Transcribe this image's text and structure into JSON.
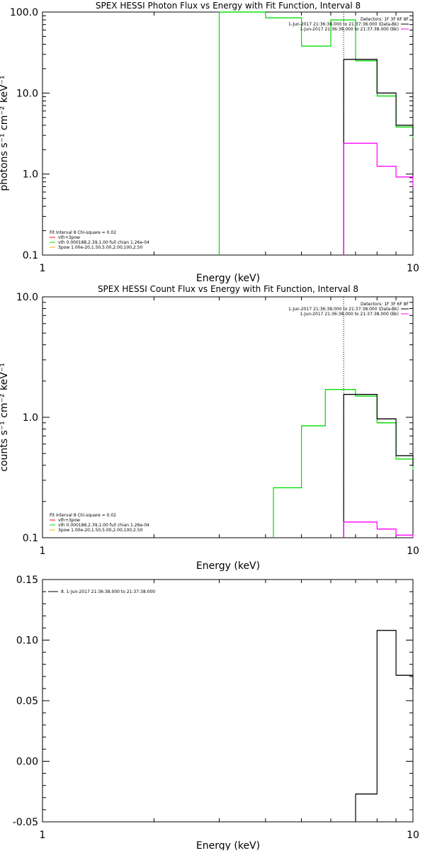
{
  "colors": {
    "background": "#ffffff",
    "data": "#000000",
    "total_fit": "#ff00ff",
    "vth": "#00dd00",
    "apow": "#ff0000",
    "thermal_line": "#00dd00",
    "bk_line": "#ff00ff",
    "pow_line": "#ffaa00"
  },
  "chart_data": [
    {
      "type": "line",
      "title": "SPEX HESSI Photon Flux vs Energy with Fit Function, Interval 8",
      "xlabel": "Energy (keV)",
      "ylabel": "photons s⁻¹ cm⁻² keV⁻¹",
      "xscale": "log",
      "yscale": "log",
      "xlim": [
        1,
        10
      ],
      "ylim": [
        0.1,
        100
      ],
      "xticks": [
        {
          "v": 1,
          "label": "1"
        },
        {
          "v": 10,
          "label": "10"
        }
      ],
      "yticks": [
        {
          "v": 0.1,
          "label": "0.1"
        },
        {
          "v": 1,
          "label": "1.0"
        },
        {
          "v": 10,
          "label": "10.0"
        },
        {
          "v": 100,
          "label": "100.0"
        }
      ],
      "vline_x": 6.5,
      "legend_top": {
        "header": "Detectors: 1F 3F 6F 8F",
        "lines": [
          "1-Jun-2017 21:36:38.000 to 21:37:38.000 (Data-Bk)",
          "1-Jun-2017 21:36:38.000 to 21:37:38.000 (Bk)"
        ]
      },
      "legend_bottom": {
        "header": "Fit Interval 8   Chi-square = 0.02",
        "lines": [
          "vth+3pow",
          "vth 0.000188,2.39,1.00  full chian 1.26e-04",
          "3pow 1.00e-20,1.50,5.00,2.00,100,2.50"
        ]
      },
      "series": [
        {
          "name": "vth 0.000188,2.39,1.00  full chian 1.26e-04",
          "key": "vth",
          "edges": [
            3,
            4,
            5,
            6,
            7,
            8,
            9,
            10
          ],
          "values": [
            100,
            85,
            38,
            80,
            25,
            9.2,
            3.8
          ]
        },
        {
          "name": "1-Jun-2017 21:36:38.000 to 21:37:38.000 (Data-Bk)",
          "key": "data",
          "edges": [
            6.5,
            7,
            8,
            9,
            10
          ],
          "values": [
            26,
            26,
            10,
            4
          ]
        },
        {
          "name": "1-Jun-2017 21:36:38.000 to 21:37:38.000 (Bk)",
          "key": "bk",
          "edges": [
            6.5,
            7,
            8,
            9,
            10
          ],
          "values": [
            2.4,
            2.4,
            1.25,
            0.92
          ]
        }
      ]
    },
    {
      "type": "line",
      "title": "SPEX HESSI Count Flux vs Energy with Fit Function, Interval 8",
      "xlabel": "Energy (keV)",
      "ylabel": "counts s⁻¹ cm⁻² keV⁻¹",
      "xscale": "log",
      "yscale": "log",
      "xlim": [
        1,
        10
      ],
      "ylim": [
        0.1,
        10
      ],
      "xticks": [
        {
          "v": 1,
          "label": "1"
        },
        {
          "v": 10,
          "label": "10"
        }
      ],
      "yticks": [
        {
          "v": 0.1,
          "label": "0.1"
        },
        {
          "v": 1,
          "label": "1.0"
        },
        {
          "v": 10,
          "label": "10.0"
        }
      ],
      "vline_x": 6.5,
      "legend_top": {
        "header": "Detectors: 1F 3F 6F 8F",
        "lines": [
          "1-Jun-2017 21:36:38.000 to 21:37:38.000 (Data-Bk)",
          "1-Jun-2017 21:36:38.000 to 21:37:38.000 (Bk)"
        ]
      },
      "legend_bottom": {
        "header": "Fit Interval 8   Chi-square = 0.02",
        "lines": [
          "vth+3pow",
          "vth 0.000188,2.39,1.00  full chian 1.26e-04",
          "3pow 1.00e-20,1.50,5.00,2.00,100,2.50"
        ]
      },
      "series": [
        {
          "name": "vth 0.000188,2.39,1.00  full chian 1.26e-04",
          "key": "vth",
          "edges": [
            4.2,
            5,
            5.8,
            6.5,
            7,
            8,
            9,
            10
          ],
          "values": [
            0.26,
            0.85,
            1.7,
            1.7,
            1.5,
            0.9,
            0.45
          ]
        },
        {
          "name": "1-Jun-2017 21:36:38.000 to 21:37:38.000 (Data-Bk)",
          "key": "data",
          "edges": [
            6.5,
            7,
            8,
            9,
            10
          ],
          "values": [
            1.55,
            1.55,
            0.97,
            0.48
          ]
        },
        {
          "name": "1-Jun-2017 21:36:38.000 to 21:37:38.000 (Bk)",
          "key": "bk",
          "edges": [
            6.5,
            7,
            8,
            9,
            10
          ],
          "values": [
            0.135,
            0.135,
            0.118,
            0.105
          ]
        }
      ]
    },
    {
      "type": "line",
      "title": "",
      "xlabel": "Energy (keV)",
      "ylabel": "",
      "xscale": "log",
      "yscale": "linear",
      "xlim": [
        1,
        10
      ],
      "ylim": [
        -0.05,
        0.15
      ],
      "xticks": [
        {
          "v": 1,
          "label": "1"
        },
        {
          "v": 10,
          "label": "10"
        }
      ],
      "yticks": [
        {
          "v": -0.05,
          "label": "-0.05"
        },
        {
          "v": 0,
          "label": "0.00"
        },
        {
          "v": 0.05,
          "label": "0.05"
        },
        {
          "v": 0.1,
          "label": "0.10"
        },
        {
          "v": 0.15,
          "label": "0.15"
        }
      ],
      "legend_top": {
        "header": "",
        "lines": [
          "8.  1-Jun-2017 21:36:38.000 to 21:37:38.000"
        ]
      },
      "series": [
        {
          "name": "8.  1-Jun-2017 21:36:38.000 to 21:37:38.000",
          "key": "data",
          "edges": [
            7,
            8,
            9,
            10
          ],
          "values": [
            -0.027,
            0.108,
            0.071
          ]
        }
      ]
    }
  ]
}
